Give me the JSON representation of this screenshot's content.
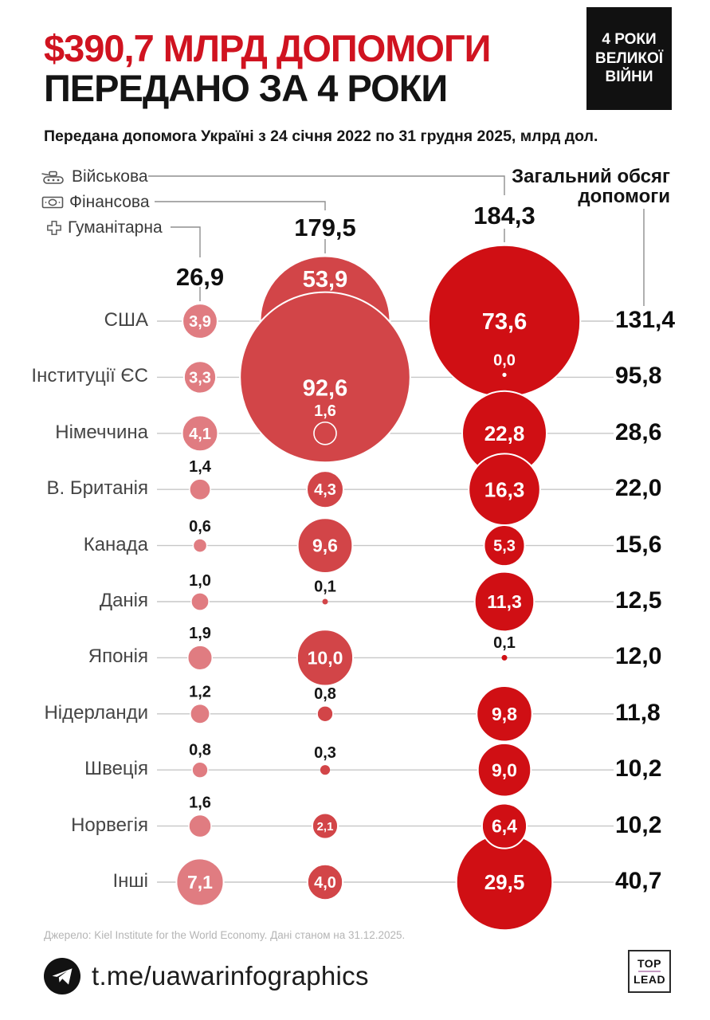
{
  "header": {
    "title_line1": "$390,7 МЛРД ДОПОМОГИ",
    "title_line2": "ПЕРЕДАНО ЗА 4 РОКИ",
    "badge_lines": [
      "4 РОКИ",
      "ВЕЛИКОЇ",
      "ВІЙНИ"
    ],
    "subtitle": "Передана допомога Україні з 24 січня 2022 по 31 грудня 2025, млрд дол."
  },
  "colors": {
    "title_red": "#d01320",
    "humanitarian": "#e07c81",
    "financial": "#d24548",
    "military": "#d00f14",
    "row_line": "#c7c7c7",
    "connector": "#8f8f8f",
    "divider_purple": "#c49ac2"
  },
  "chart_data": {
    "type": "bubble",
    "unit": "млрд дол.",
    "title": "$390,7 млрд допомоги передано за 4 роки",
    "total_header_lines": [
      "Загальний обсяг",
      "допомоги"
    ],
    "legend": [
      {
        "key": "military",
        "label": "Військова",
        "icon": "tank-icon",
        "total": "184,3",
        "total_value": 184.3
      },
      {
        "key": "financial",
        "label": "Фінансова",
        "icon": "banknote-icon",
        "total": "179,5",
        "total_value": 179.5
      },
      {
        "key": "humanitarian",
        "label": "Гуманітарна",
        "icon": "cross-icon",
        "total": "26,9",
        "total_value": 26.9
      }
    ],
    "rows": [
      {
        "country": "США",
        "humanitarian": "3,9",
        "financial": "53,9",
        "military": "73,6",
        "total": "131,4",
        "financial_label_dy": -53
      },
      {
        "country": "Інституції ЄС",
        "humanitarian": "3,3",
        "financial": "92,6",
        "military": "0,0",
        "total": "95,8",
        "financial_label_dy": 13,
        "military_style": "white-above"
      },
      {
        "country": "Німеччина",
        "humanitarian": "4,1",
        "financial": "1,6",
        "military": "22,8",
        "total": "28,6",
        "financial_style": "ring"
      },
      {
        "country": "В. Британія",
        "humanitarian": "1,4",
        "financial": "4,3",
        "military": "16,3",
        "total": "22,0"
      },
      {
        "country": "Канада",
        "humanitarian": "0,6",
        "financial": "9,6",
        "military": "5,3",
        "total": "15,6"
      },
      {
        "country": "Данія",
        "humanitarian": "1,0",
        "financial": "0,1",
        "military": "11,3",
        "total": "12,5"
      },
      {
        "country": "Японія",
        "humanitarian": "1,9",
        "financial": "10,0",
        "military": "0,1",
        "total": "12,0"
      },
      {
        "country": "Нідерланди",
        "humanitarian": "1,2",
        "financial": "0,8",
        "military": "9,8",
        "total": "11,8"
      },
      {
        "country": "Швеція",
        "humanitarian": "0,8",
        "financial": "0,3",
        "military": "9,0",
        "total": "10,2"
      },
      {
        "country": "Норвегія",
        "humanitarian": "1,6",
        "financial": "2,1",
        "military": "6,4",
        "total": "10,2",
        "military_z": 11
      },
      {
        "country": "Інші",
        "humanitarian": "7,1",
        "financial": "4,0",
        "military": "29,5",
        "total": "40,7"
      }
    ]
  },
  "footer": {
    "source": "Джерело: Kiel Institute for the World Economy. Дані станом на 31.12.2025.",
    "telegram": "t.me/uawarinfographics",
    "toplead_top": "TOP",
    "toplead_bottom": "LEAD"
  }
}
